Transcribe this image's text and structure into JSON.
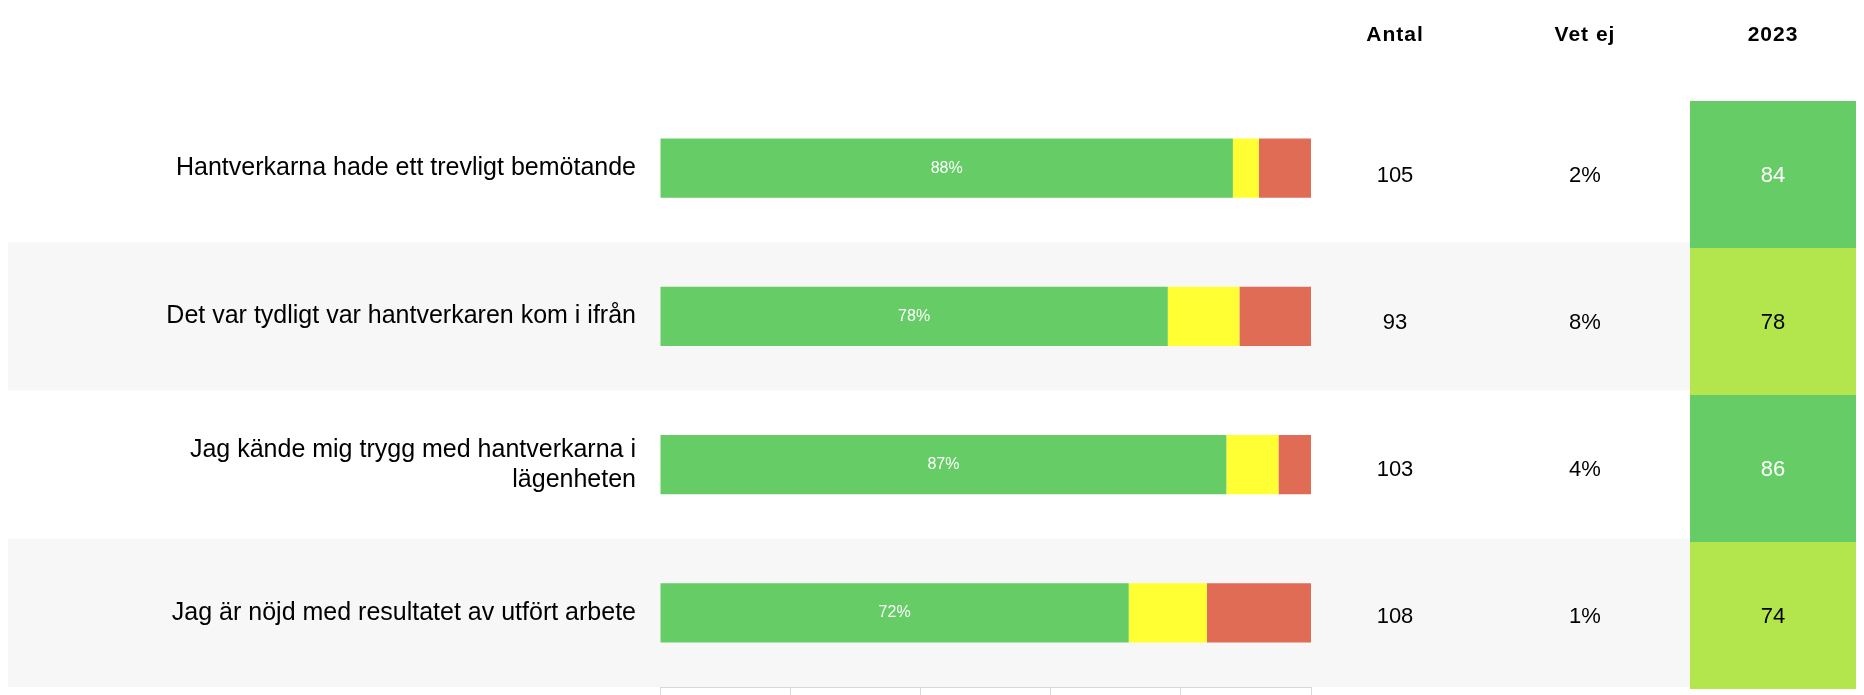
{
  "chart_data": [
    {
      "type": "bar",
      "orientation": "horizontal",
      "stacked": true,
      "categories": [
        "Hantverkarna hade ett trevligt bemötande",
        "Det var tydligt var hantverkaren kom i ifrån",
        "Jag kände mig trygg med hantverkarna i lägenheten",
        "Jag är nöjd med resultatet av utfört arbete"
      ],
      "xlim": [
        0,
        100
      ],
      "xticks": [
        {
          "value": 0,
          "label": null
        },
        {
          "value": 20,
          "label": null
        },
        {
          "value": 40,
          "label": null
        },
        {
          "value": 60,
          "label": null
        },
        {
          "value": 80,
          "label": null
        },
        {
          "value": 100,
          "label": null
        }
      ],
      "tick_labels": "y",
      "bands": [
        {
          "axis": "y",
          "from": "Det var tydligt var hantverkaren kom i ifrån",
          "to": "Det var tydligt var hantverkaren kom i ifrån",
          "color": "#f7f7f7"
        },
        {
          "axis": "y",
          "from": "Jag är nöjd med resultatet av utfört arbete",
          "to": "Jag är nöjd med resultatet av utfört arbete",
          "color": "#f7f7f7"
        }
      ],
      "series": [
        {
          "color": "#66cd66",
          "values": [
            88,
            78,
            87,
            72
          ],
          "value_labels": [
            "88%",
            "78%",
            "87%",
            "72%"
          ]
        },
        {
          "color": "#ffff33",
          "values": [
            4,
            11,
            8,
            12
          ]
        },
        {
          "color": "#e06c55",
          "values": [
            8,
            11,
            5,
            16
          ]
        }
      ]
    },
    {
      "type": "other",
      "categories": [
        "Antal",
        "Vet ej",
        "2023"
      ],
      "cell_labels": [
        [
          "105",
          "2%",
          "84"
        ],
        [
          "93",
          "8%",
          "78"
        ],
        [
          "103",
          "4%",
          "86"
        ],
        [
          "108",
          "1%",
          "74"
        ]
      ],
      "colors": [
        [
          null,
          null,
          "#66cc66"
        ],
        [
          null,
          null,
          "#b3e64d"
        ],
        [
          null,
          null,
          "#66cc66"
        ],
        [
          null,
          null,
          "#b3e64d"
        ]
      ]
    }
  ]
}
